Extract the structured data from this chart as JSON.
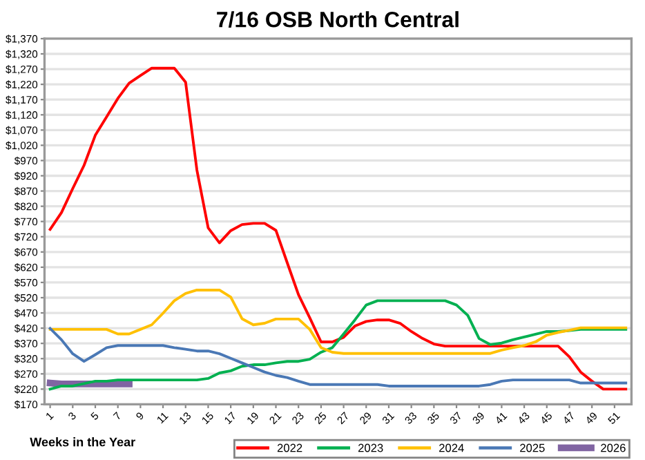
{
  "chart_data": {
    "type": "line",
    "title": "7/16 OSB North Central",
    "xlabel": "Weeks in the Year",
    "x": [
      1,
      2,
      3,
      4,
      5,
      6,
      7,
      8,
      9,
      10,
      11,
      12,
      13,
      14,
      15,
      16,
      17,
      18,
      19,
      20,
      21,
      22,
      23,
      24,
      25,
      26,
      27,
      28,
      29,
      30,
      31,
      32,
      33,
      34,
      35,
      36,
      37,
      38,
      39,
      40,
      41,
      42,
      43,
      44,
      45,
      46,
      47,
      48,
      49,
      50,
      51,
      52
    ],
    "series": [
      {
        "name": "2022",
        "color": "#ff0000",
        "values": [
          744,
          799,
          878,
          954,
          1053,
          1113,
          1174,
          1224,
          1249,
          1273,
          1273,
          1273,
          1227,
          939,
          749,
          700,
          740,
          760,
          764,
          764,
          741,
          635,
          530,
          454,
          375,
          375,
          390,
          427,
          442,
          447,
          447,
          436,
          409,
          386,
          368,
          361,
          361,
          361,
          361,
          361,
          361,
          361,
          361,
          361,
          361,
          361,
          326,
          276,
          246,
          220,
          220,
          220
        ]
      },
      {
        "name": "2023",
        "color": "#00b050",
        "values": [
          220,
          230,
          230,
          238,
          246,
          246,
          250,
          250,
          250,
          250,
          250,
          250,
          250,
          250,
          255,
          273,
          280,
          295,
          300,
          300,
          306,
          311,
          311,
          318,
          341,
          356,
          401,
          447,
          496,
          510,
          510,
          510,
          510,
          510,
          510,
          510,
          496,
          462,
          386,
          366,
          371,
          382,
          391,
          400,
          409,
          409,
          412,
          416,
          416,
          416,
          416,
          416
        ]
      },
      {
        "name": "2024",
        "color": "#ffc000",
        "values": [
          416,
          416,
          416,
          416,
          416,
          416,
          401,
          401,
          416,
          431,
          469,
          510,
          534,
          545,
          545,
          545,
          522,
          451,
          431,
          436,
          450,
          450,
          450,
          416,
          356,
          341,
          337,
          337,
          337,
          337,
          337,
          337,
          337,
          337,
          337,
          337,
          337,
          337,
          337,
          337,
          348,
          356,
          363,
          375,
          397,
          406,
          413,
          421,
          421,
          421,
          421,
          421
        ]
      },
      {
        "name": "2025",
        "color": "#4a78b5",
        "values": [
          419,
          382,
          336,
          311,
          333,
          356,
          363,
          363,
          363,
          363,
          363,
          356,
          351,
          345,
          345,
          336,
          321,
          306,
          291,
          276,
          265,
          258,
          246,
          235,
          235,
          235,
          235,
          235,
          235,
          235,
          230,
          230,
          230,
          230,
          230,
          230,
          230,
          230,
          230,
          235,
          246,
          250,
          250,
          250,
          250,
          250,
          250,
          240,
          240,
          240,
          240,
          240
        ]
      },
      {
        "name": "2026",
        "color": "#8064a2",
        "x": [
          1,
          2,
          3,
          4,
          5,
          6,
          7,
          8
        ],
        "values": [
          240,
          237,
          237,
          237,
          237,
          237,
          237,
          237
        ]
      }
    ],
    "xlim": [
      0.5,
      52.5
    ],
    "xticks": [
      1,
      3,
      5,
      7,
      9,
      11,
      13,
      15,
      17,
      19,
      21,
      23,
      25,
      27,
      29,
      31,
      33,
      35,
      37,
      39,
      41,
      43,
      45,
      47,
      49,
      51
    ],
    "ylim": [
      170,
      1370
    ],
    "yticks": [
      {
        "value": 170,
        "label": "$170"
      },
      {
        "value": 220,
        "label": "$220"
      },
      {
        "value": 270,
        "label": "$270"
      },
      {
        "value": 320,
        "label": "$320"
      },
      {
        "value": 370,
        "label": "$370"
      },
      {
        "value": 420,
        "label": "$420"
      },
      {
        "value": 470,
        "label": "$470"
      },
      {
        "value": 520,
        "label": "$520"
      },
      {
        "value": 570,
        "label": "$570"
      },
      {
        "value": 620,
        "label": "$620"
      },
      {
        "value": 670,
        "label": "$670"
      },
      {
        "value": 720,
        "label": "$720"
      },
      {
        "value": 770,
        "label": "$770"
      },
      {
        "value": 820,
        "label": "$820"
      },
      {
        "value": 870,
        "label": "$870"
      },
      {
        "value": 920,
        "label": "$920"
      },
      {
        "value": 970,
        "label": "$970"
      },
      {
        "value": 1020,
        "label": "$1,020"
      },
      {
        "value": 1070,
        "label": "$1,070"
      },
      {
        "value": 1120,
        "label": "$1,120"
      },
      {
        "value": 1170,
        "label": "$1,170"
      },
      {
        "value": 1220,
        "label": "$1,220"
      },
      {
        "value": 1270,
        "label": "$1,270"
      },
      {
        "value": 1320,
        "label": "$1,320"
      },
      {
        "value": 1370,
        "label": "$1,370"
      }
    ],
    "grid": "y",
    "legend": "bottom",
    "marker": "none",
    "line_style": "solid"
  }
}
